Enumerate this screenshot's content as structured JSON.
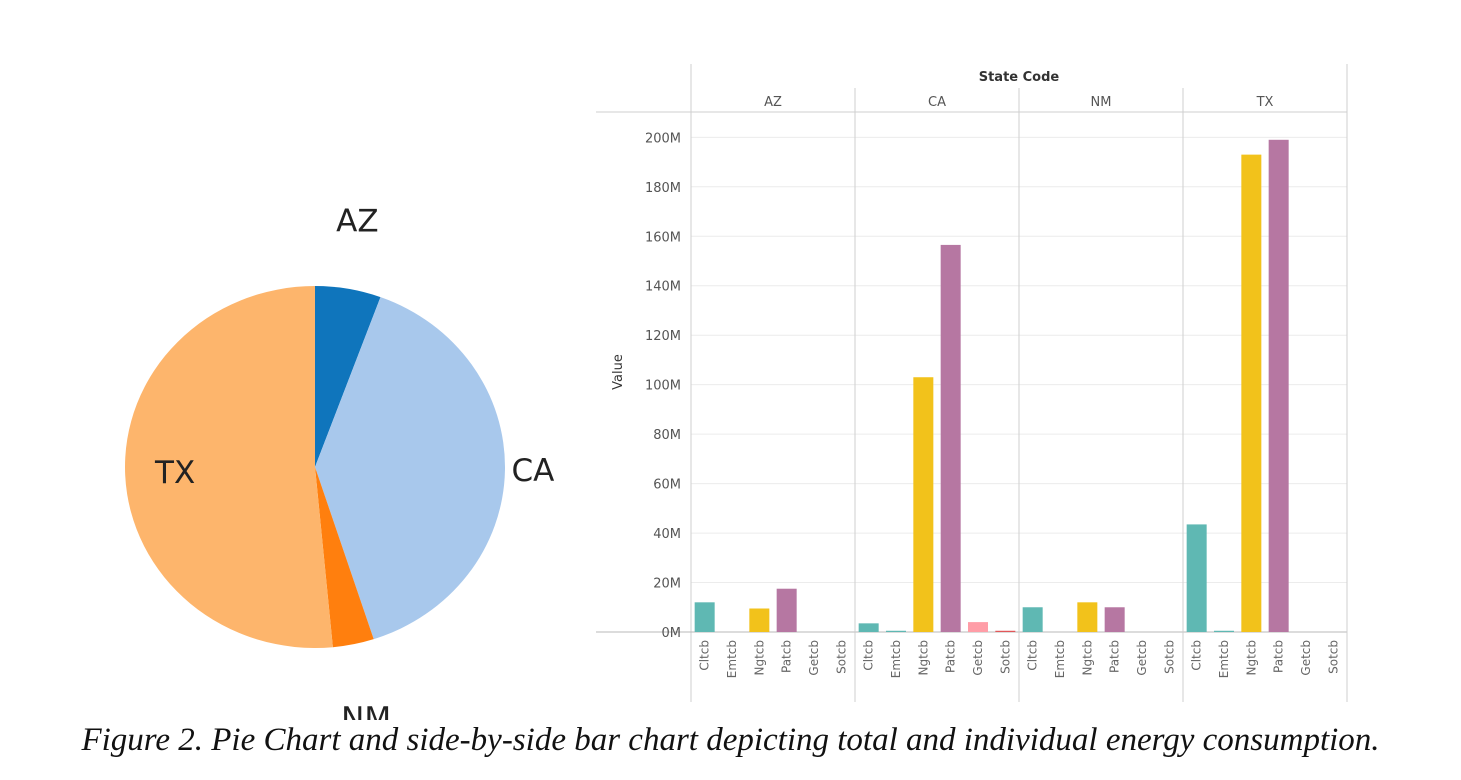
{
  "caption": "Figure 2. Pie Chart and side-by-side bar chart depicting total and individual energy consumption.",
  "chart_data": [
    {
      "type": "pie",
      "categories": [
        "AZ",
        "CA",
        "NM",
        "TX"
      ],
      "values": [
        5.6,
        39.4,
        3.5,
        51.5
      ],
      "colors": [
        "#0f75bc",
        "#a8c8ec",
        "#ff7f0e",
        "#fdb56c"
      ],
      "title": ""
    },
    {
      "type": "bar",
      "header_title": "State Code",
      "groups": [
        "AZ",
        "CA",
        "NM",
        "TX"
      ],
      "categories": [
        "Cltcb",
        "Emtcb",
        "Ngtcb",
        "Patcb",
        "Getcb",
        "Sotcb"
      ],
      "category_colors": [
        "#5fb8b3",
        "#5fb8b3",
        "#f2c21b",
        "#b677a2",
        "#ff9da7",
        "#e15759"
      ],
      "series": [
        {
          "values": [
            12,
            0,
            9.5,
            17.5,
            0,
            0
          ]
        },
        {
          "values": [
            3.5,
            0.5,
            103,
            156.5,
            4,
            0.5
          ]
        },
        {
          "values": [
            10,
            0,
            12,
            10,
            0,
            0
          ]
        },
        {
          "values": [
            43.5,
            0.5,
            193,
            199,
            0,
            0
          ]
        }
      ],
      "ylabel": "Value",
      "ylim": [
        0,
        207
      ],
      "yticks": [
        0,
        20,
        40,
        60,
        80,
        100,
        120,
        140,
        160,
        180,
        200
      ],
      "ytick_labels": [
        "0M",
        "20M",
        "40M",
        "60M",
        "80M",
        "100M",
        "120M",
        "140M",
        "160M",
        "180M",
        "200M"
      ],
      "grid": true
    }
  ]
}
